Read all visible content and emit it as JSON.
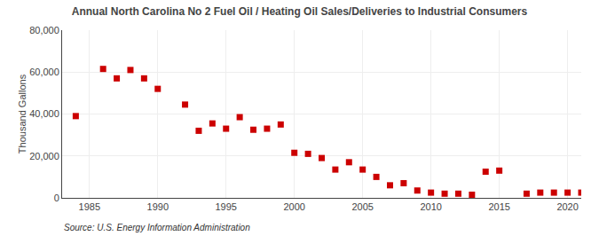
{
  "chart_data": {
    "type": "scatter",
    "title": "Annual North Carolina No 2 Fuel Oil / Heating Oil Sales/Deliveries to Industrial Consumers",
    "y_label": "Thousand Gallons",
    "annotations": [
      "Source: U.S. Energy Information Administration"
    ],
    "x": [
      1984,
      1986,
      1987,
      1988,
      1989,
      1990,
      1992,
      1993,
      1994,
      1995,
      1996,
      1997,
      1998,
      1999,
      2000,
      2001,
      2002,
      2003,
      2004,
      2005,
      2006,
      2007,
      2008,
      2009,
      2010,
      2011,
      2012,
      2013,
      2014,
      2015,
      2017,
      2018,
      2019,
      2020,
      2021
    ],
    "values": [
      39000,
      61500,
      57000,
      61000,
      57000,
      52000,
      44500,
      32000,
      35500,
      33000,
      38500,
      32500,
      33000,
      35000,
      21500,
      21000,
      19000,
      13500,
      17000,
      13500,
      10000,
      6000,
      7000,
      3500,
      2500,
      2000,
      2000,
      1500,
      12500,
      13000,
      2000,
      2500,
      2500,
      2500,
      2500
    ],
    "color": "#cc0000",
    "marker": "square",
    "xlim": [
      1983,
      2021
    ],
    "xticks": [
      1985,
      1990,
      1995,
      2000,
      2005,
      2010,
      2015,
      2020
    ],
    "ylim": [
      0,
      80000
    ],
    "yticks": [
      0,
      {
        "value": 20000,
        "label": "20,000"
      },
      {
        "value": 40000,
        "label": "40,000"
      },
      {
        "value": 60000,
        "label": "60,000"
      },
      {
        "value": 80000,
        "label": "80,000"
      }
    ],
    "grid": true
  }
}
